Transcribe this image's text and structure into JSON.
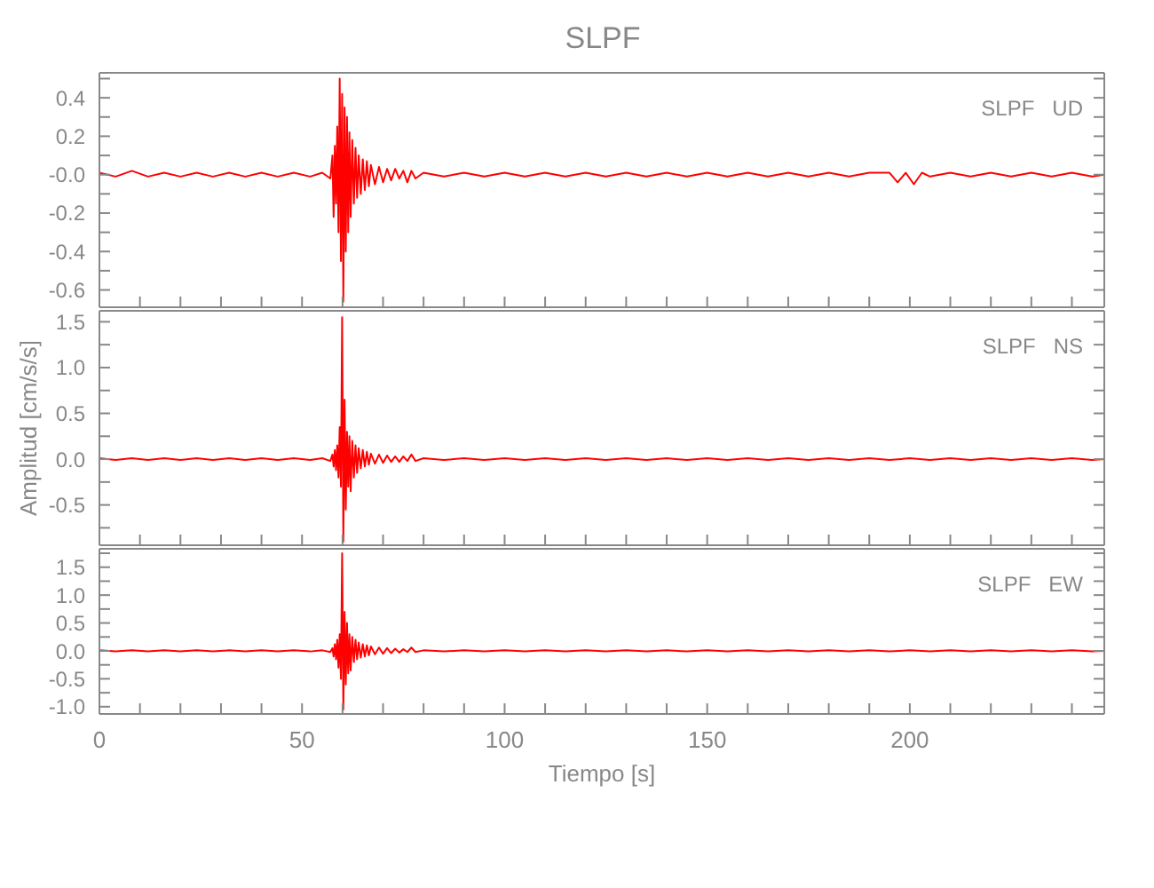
{
  "chart_data": [
    {
      "type": "line",
      "title": "SLPF",
      "annotations": [
        "SLPF   UD"
      ],
      "tick_labels": "y",
      "xlim": [
        0,
        248
      ],
      "ylim": [
        -0.69,
        0.53
      ],
      "xticks": [
        0,
        {
          "value": 10,
          "label": null
        },
        {
          "value": 20,
          "label": null
        },
        {
          "value": 30,
          "label": null
        },
        {
          "value": 40,
          "label": null
        },
        50,
        {
          "value": 60,
          "label": null
        },
        {
          "value": 70,
          "label": null
        },
        {
          "value": 80,
          "label": null
        },
        {
          "value": 90,
          "label": null
        },
        100,
        {
          "value": 110,
          "label": null
        },
        {
          "value": 120,
          "label": null
        },
        {
          "value": 130,
          "label": null
        },
        {
          "value": 140,
          "label": null
        },
        150,
        {
          "value": 160,
          "label": null
        },
        {
          "value": 170,
          "label": null
        },
        {
          "value": 180,
          "label": null
        },
        {
          "value": 190,
          "label": null
        },
        200,
        {
          "value": 210,
          "label": null
        },
        {
          "value": 220,
          "label": null
        },
        {
          "value": 230,
          "label": null
        },
        {
          "value": 240,
          "label": null
        }
      ],
      "yticks": [
        -0.6,
        {
          "value": -0.5,
          "label": null
        },
        -0.4,
        {
          "value": -0.3,
          "label": null
        },
        -0.2,
        {
          "value": -0.1,
          "label": null
        },
        {
          "value": 0,
          "label": "-0.0"
        },
        {
          "value": 0.1,
          "label": null
        },
        0.2,
        {
          "value": 0.3,
          "label": null
        },
        0.4,
        {
          "value": 0.5,
          "label": null
        }
      ],
      "x": [
        0,
        4,
        8,
        12,
        16,
        20,
        24,
        28,
        32,
        36,
        40,
        44,
        48,
        52,
        55,
        57,
        57.5,
        57.8,
        58.1,
        58.4,
        58.7,
        59,
        59.3,
        59.6,
        59.9,
        60.2,
        60.5,
        60.8,
        61.1,
        61.4,
        61.7,
        62,
        62.4,
        62.8,
        63.2,
        63.6,
        64,
        64.5,
        65,
        65.5,
        66,
        66.5,
        67,
        68,
        69,
        70,
        71,
        72,
        73,
        74,
        75,
        76,
        77,
        78,
        80,
        85,
        90,
        95,
        100,
        105,
        110,
        115,
        120,
        125,
        130,
        135,
        140,
        145,
        150,
        155,
        160,
        165,
        170,
        175,
        180,
        185,
        190,
        195,
        197,
        199,
        201,
        203,
        205,
        210,
        215,
        220,
        225,
        230,
        235,
        240,
        245,
        248
      ],
      "series": [
        {
          "color": "#ff0000",
          "values": [
            0.01,
            -0.01,
            0.02,
            -0.01,
            0.01,
            -0.01,
            0.01,
            -0.01,
            0.01,
            -0.01,
            0.01,
            -0.01,
            0.01,
            -0.01,
            0.01,
            -0.02,
            0.1,
            -0.22,
            0.15,
            -0.15,
            0.25,
            -0.3,
            0.5,
            -0.45,
            0.42,
            -0.66,
            0.35,
            -0.4,
            0.3,
            -0.3,
            0.22,
            -0.22,
            0.18,
            -0.15,
            0.14,
            -0.12,
            0.1,
            -0.1,
            0.08,
            -0.08,
            0.07,
            -0.06,
            0.05,
            -0.05,
            0.04,
            -0.04,
            0.03,
            -0.03,
            0.03,
            -0.02,
            0.02,
            -0.04,
            0.02,
            -0.02,
            0.01,
            -0.01,
            0.01,
            -0.01,
            0.01,
            -0.01,
            0.01,
            -0.01,
            0.01,
            -0.01,
            0.01,
            -0.01,
            0.01,
            -0.01,
            0.01,
            -0.01,
            0.01,
            -0.01,
            0.01,
            -0.01,
            0.01,
            -0.01,
            0.01,
            0.01,
            -0.04,
            0.01,
            -0.05,
            0.01,
            -0.01,
            0.01,
            -0.01,
            0.01,
            -0.01,
            0.01,
            -0.01,
            0.01,
            -0.01,
            0
          ]
        }
      ]
    },
    {
      "type": "line",
      "ylabel": "Amplitud  [cm/s/s]",
      "annotations": [
        "SLPF   NS"
      ],
      "tick_labels": "y",
      "xlim": [
        0,
        248
      ],
      "ylim": [
        -0.94,
        1.62
      ],
      "xticks": [
        0,
        {
          "value": 10,
          "label": null
        },
        {
          "value": 20,
          "label": null
        },
        {
          "value": 30,
          "label": null
        },
        {
          "value": 40,
          "label": null
        },
        50,
        {
          "value": 60,
          "label": null
        },
        {
          "value": 70,
          "label": null
        },
        {
          "value": 80,
          "label": null
        },
        {
          "value": 90,
          "label": null
        },
        100,
        {
          "value": 110,
          "label": null
        },
        {
          "value": 120,
          "label": null
        },
        {
          "value": 130,
          "label": null
        },
        {
          "value": 140,
          "label": null
        },
        150,
        {
          "value": 160,
          "label": null
        },
        {
          "value": 170,
          "label": null
        },
        {
          "value": 180,
          "label": null
        },
        {
          "value": 190,
          "label": null
        },
        200,
        {
          "value": 210,
          "label": null
        },
        {
          "value": 220,
          "label": null
        },
        {
          "value": 230,
          "label": null
        },
        {
          "value": 240,
          "label": null
        }
      ],
      "yticks": [
        {
          "value": -0.75,
          "label": null
        },
        -0.5,
        {
          "value": -0.25,
          "label": null
        },
        {
          "value": 0,
          "label": "0.0"
        },
        {
          "value": 0.25,
          "label": null
        },
        0.5,
        {
          "value": 0.75,
          "label": null
        },
        {
          "value": 1,
          "label": "1.0"
        },
        {
          "value": 1.25,
          "label": null
        },
        1.5
      ],
      "x": [
        0,
        4,
        8,
        12,
        16,
        20,
        24,
        28,
        32,
        36,
        40,
        44,
        48,
        52,
        55,
        57,
        57.5,
        57.8,
        58.1,
        58.4,
        58.7,
        59,
        59.3,
        59.6,
        59.9,
        60.2,
        60.5,
        60.8,
        61.1,
        61.4,
        61.7,
        62,
        62.4,
        62.8,
        63.2,
        63.6,
        64,
        64.5,
        65,
        65.5,
        66,
        66.5,
        67,
        68,
        69,
        70,
        71,
        72,
        73,
        74,
        75,
        76,
        77,
        78,
        80,
        85,
        90,
        95,
        100,
        105,
        110,
        115,
        120,
        125,
        130,
        135,
        140,
        145,
        150,
        155,
        160,
        165,
        170,
        175,
        180,
        185,
        190,
        195,
        200,
        205,
        210,
        215,
        220,
        225,
        230,
        235,
        240,
        245,
        248
      ],
      "series": [
        {
          "color": "#ff0000",
          "values": [
            0.01,
            -0.01,
            0.01,
            -0.01,
            0.01,
            -0.01,
            0.01,
            -0.01,
            0.01,
            -0.01,
            0.01,
            -0.01,
            0.01,
            -0.01,
            0.01,
            -0.02,
            0.05,
            -0.08,
            0.1,
            -0.12,
            0.15,
            -0.2,
            0.35,
            -0.3,
            1.55,
            -0.9,
            0.65,
            -0.55,
            0.3,
            -0.3,
            0.25,
            -0.35,
            0.2,
            -0.2,
            0.15,
            -0.15,
            0.12,
            -0.1,
            0.1,
            -0.08,
            0.08,
            -0.06,
            0.06,
            -0.05,
            0.05,
            -0.04,
            0.04,
            -0.03,
            0.03,
            -0.03,
            0.03,
            -0.02,
            0.05,
            -0.02,
            0.01,
            -0.01,
            0.01,
            -0.01,
            0.01,
            -0.01,
            0.01,
            -0.01,
            0.01,
            -0.01,
            0.01,
            -0.01,
            0.01,
            -0.01,
            0.01,
            -0.01,
            0.01,
            -0.01,
            0.01,
            -0.01,
            0.01,
            -0.01,
            0.01,
            -0.01,
            0.01,
            -0.01,
            0.01,
            -0.01,
            0.01,
            -0.01,
            0.01,
            -0.01,
            0.01,
            -0.01,
            0
          ]
        }
      ]
    },
    {
      "type": "line",
      "xlabel": "Tiempo  [s]",
      "annotations": [
        "SLPF   EW"
      ],
      "xlim": [
        0,
        248
      ],
      "ylim": [
        -1.13,
        1.83
      ],
      "xticks": [
        0,
        {
          "value": 10,
          "label": null
        },
        {
          "value": 20,
          "label": null
        },
        {
          "value": 30,
          "label": null
        },
        {
          "value": 40,
          "label": null
        },
        50,
        {
          "value": 60,
          "label": null
        },
        {
          "value": 70,
          "label": null
        },
        {
          "value": 80,
          "label": null
        },
        {
          "value": 90,
          "label": null
        },
        100,
        {
          "value": 110,
          "label": null
        },
        {
          "value": 120,
          "label": null
        },
        {
          "value": 130,
          "label": null
        },
        {
          "value": 140,
          "label": null
        },
        150,
        {
          "value": 160,
          "label": null
        },
        {
          "value": 170,
          "label": null
        },
        {
          "value": 180,
          "label": null
        },
        {
          "value": 190,
          "label": null
        },
        200,
        {
          "value": 210,
          "label": null
        },
        {
          "value": 220,
          "label": null
        },
        {
          "value": 230,
          "label": null
        },
        {
          "value": 240,
          "label": null
        }
      ],
      "yticks": [
        {
          "value": -1,
          "label": "-1.0"
        },
        {
          "value": -0.75,
          "label": null
        },
        -0.5,
        {
          "value": -0.25,
          "label": null
        },
        {
          "value": 0,
          "label": "0.0"
        },
        {
          "value": 0.25,
          "label": null
        },
        0.5,
        {
          "value": 0.75,
          "label": null
        },
        {
          "value": 1,
          "label": "1.0"
        },
        {
          "value": 1.25,
          "label": null
        },
        1.5,
        {
          "value": 1.75,
          "label": null
        }
      ],
      "x": [
        0,
        4,
        8,
        12,
        16,
        20,
        24,
        28,
        32,
        36,
        40,
        44,
        48,
        52,
        55,
        57,
        57.5,
        57.8,
        58.1,
        58.4,
        58.7,
        59,
        59.3,
        59.6,
        59.9,
        60.2,
        60.5,
        60.8,
        61.1,
        61.4,
        61.7,
        62,
        62.4,
        62.8,
        63.2,
        63.6,
        64,
        64.5,
        65,
        65.5,
        66,
        66.5,
        67,
        68,
        69,
        70,
        71,
        72,
        73,
        74,
        75,
        76,
        77,
        78,
        80,
        85,
        90,
        95,
        100,
        105,
        110,
        115,
        120,
        125,
        130,
        135,
        140,
        145,
        150,
        155,
        160,
        165,
        170,
        175,
        180,
        185,
        190,
        195,
        200,
        205,
        210,
        215,
        220,
        225,
        230,
        235,
        240,
        245,
        248
      ],
      "series": [
        {
          "color": "#ff0000",
          "values": [
            0.01,
            -0.01,
            0.01,
            -0.01,
            0.01,
            -0.01,
            0.01,
            -0.01,
            0.01,
            -0.01,
            0.01,
            -0.01,
            0.01,
            -0.01,
            0.01,
            -0.02,
            0.05,
            -0.1,
            0.12,
            -0.15,
            0.2,
            -0.3,
            0.3,
            -0.5,
            1.75,
            -1.05,
            0.7,
            -0.6,
            0.5,
            -0.4,
            0.3,
            -0.35,
            0.25,
            -0.2,
            0.2,
            -0.15,
            0.15,
            -0.12,
            0.12,
            -0.1,
            0.1,
            -0.08,
            0.08,
            -0.06,
            0.06,
            -0.05,
            0.05,
            -0.04,
            0.04,
            -0.03,
            0.03,
            -0.02,
            0.06,
            -0.02,
            0.01,
            -0.01,
            0.01,
            -0.01,
            0.01,
            -0.01,
            0.01,
            -0.01,
            0.01,
            -0.01,
            0.01,
            -0.01,
            0.01,
            -0.01,
            0.01,
            -0.01,
            0.01,
            -0.01,
            0.01,
            -0.01,
            0.01,
            -0.01,
            0.01,
            -0.01,
            0.01,
            -0.01,
            0.01,
            -0.01,
            0.01,
            -0.01,
            0.01,
            -0.01,
            0.01,
            -0.01,
            0
          ]
        }
      ]
    }
  ]
}
